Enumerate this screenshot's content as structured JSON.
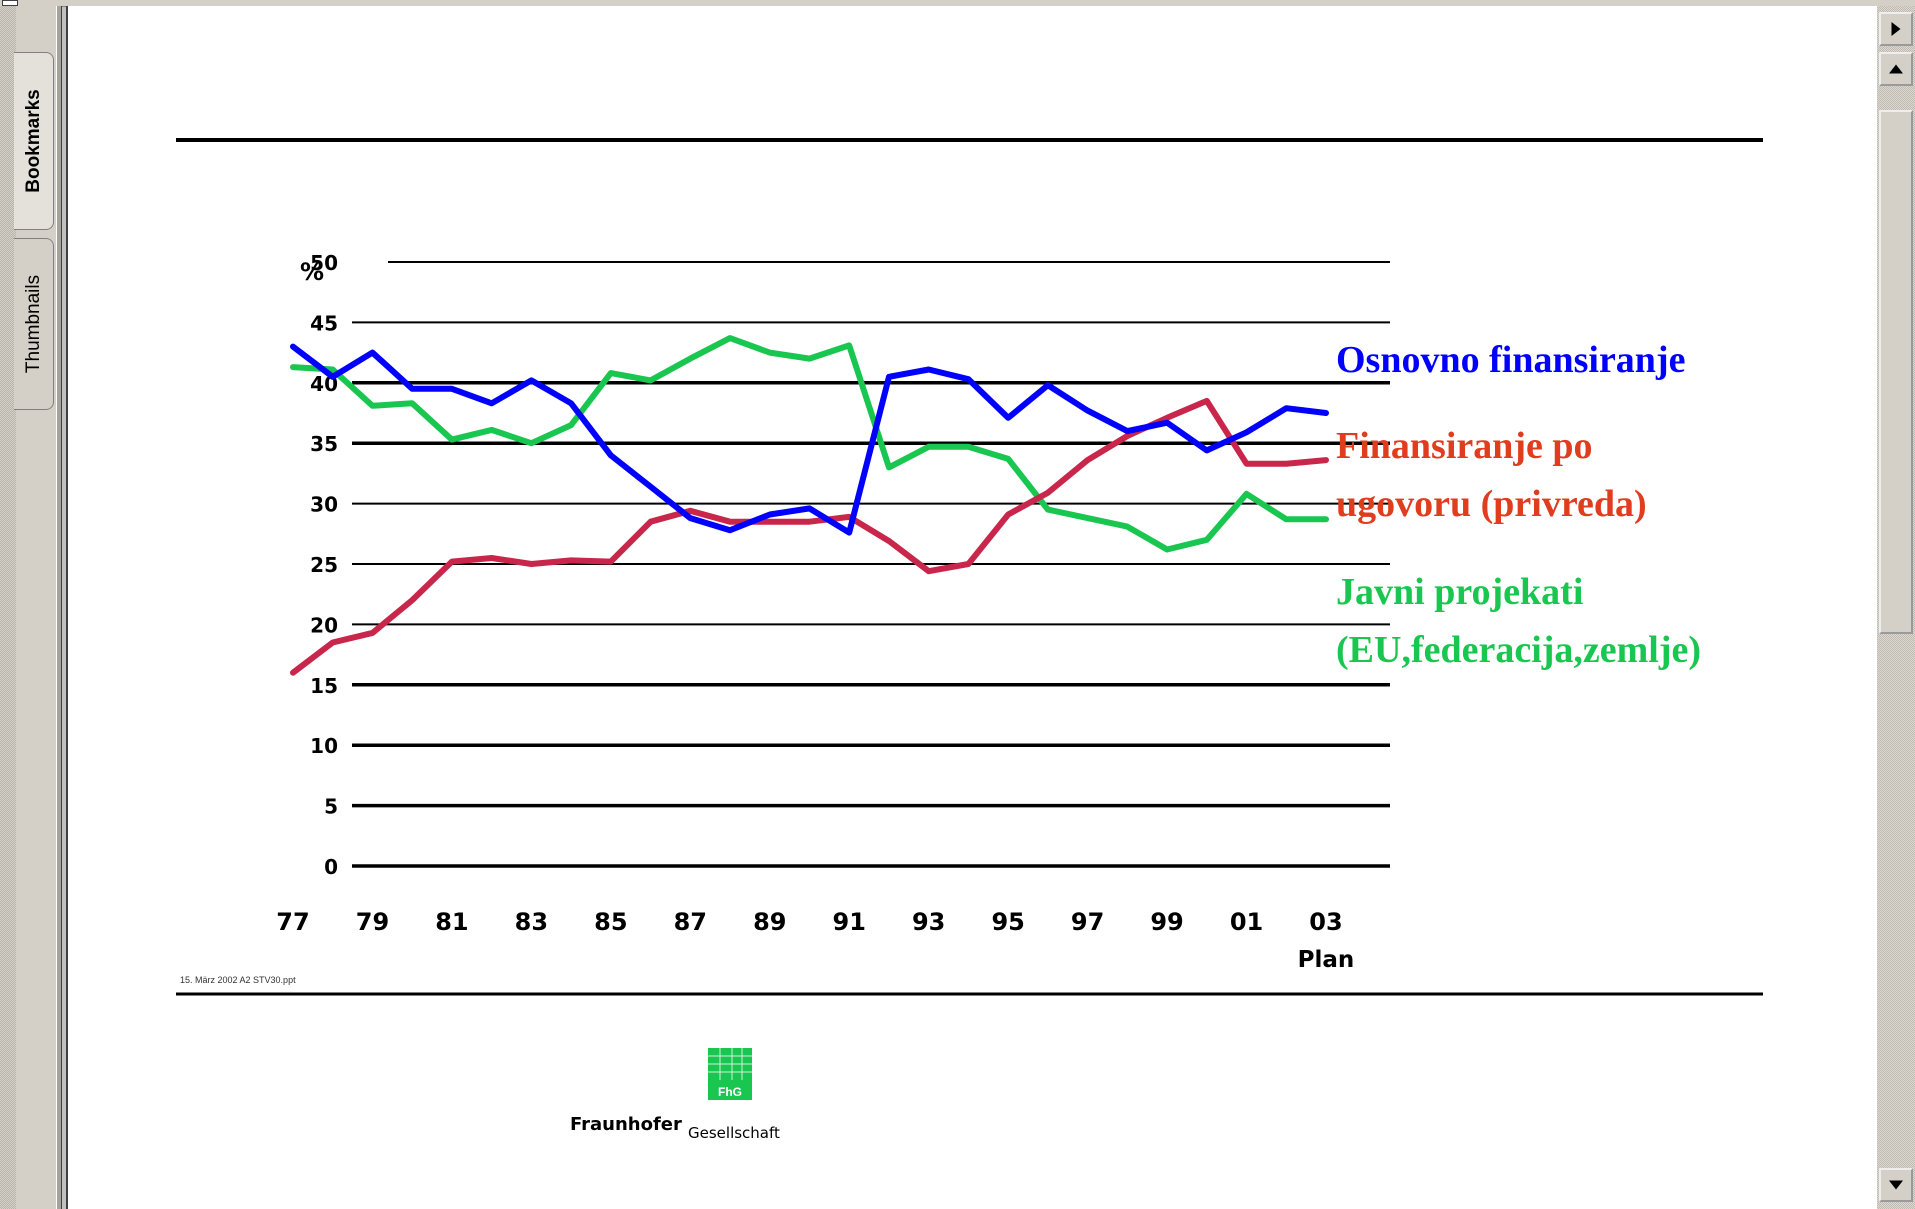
{
  "viewer": {
    "tabs": [
      {
        "label": "Bookmarks"
      },
      {
        "label": "Thumbnails"
      }
    ]
  },
  "slide": {
    "footnote": "15. März 2002 A2 STV30.ppt",
    "logo_badge": "FhG",
    "logo_name": "Fraunhofer",
    "logo_suffix": "Gesellschaft"
  },
  "chart_data": {
    "type": "line",
    "ylabel": "%",
    "ylim": [
      0,
      50
    ],
    "y_ticks": [
      0,
      5,
      10,
      15,
      20,
      25,
      30,
      35,
      40,
      45,
      50
    ],
    "x": [
      1977,
      1978,
      1979,
      1980,
      1981,
      1982,
      1983,
      1984,
      1985,
      1986,
      1987,
      1988,
      1989,
      1990,
      1991,
      1992,
      1993,
      1994,
      1995,
      1996,
      1997,
      1998,
      1999,
      2000,
      2001,
      2002,
      2003
    ],
    "x_tick_labels": [
      "77",
      "79",
      "81",
      "83",
      "85",
      "87",
      "89",
      "91",
      "93",
      "95",
      "97",
      "99",
      "01",
      "03"
    ],
    "x_tick_values": [
      1977,
      1979,
      1981,
      1983,
      1985,
      1987,
      1989,
      1991,
      1993,
      1995,
      1997,
      1999,
      2001,
      2003
    ],
    "x_sublabel": "Plan",
    "grid": true,
    "legend_position": "right",
    "series": [
      {
        "name": "Osnovno finansiranje",
        "color": "#0000ff",
        "label_color": "#0000ff",
        "values": [
          43,
          40.5,
          42.5,
          39.5,
          39.5,
          38.3,
          40.2,
          38.3,
          34,
          31.4,
          28.8,
          27.8,
          29.1,
          29.6,
          27.6,
          40.5,
          41.1,
          40.3,
          37.1,
          39.8,
          37.7,
          36,
          36.7,
          34.4,
          35.9,
          37.9,
          37.5
        ]
      },
      {
        "name": "Finansiranje po ugovoru (privreda)",
        "color": "#c8264b",
        "label_color": "#e03c1e",
        "values": [
          16,
          18.5,
          19.3,
          22,
          25.2,
          25.5,
          25,
          25.3,
          25.2,
          28.5,
          29.4,
          28.5,
          28.5,
          28.5,
          28.9,
          26.9,
          24.4,
          25,
          29.1,
          30.9,
          33.6,
          35.6,
          37.1,
          38.5,
          33.3,
          33.3,
          33.6
        ]
      },
      {
        "name": "Javni projekati (EU,federacija,zemlje)",
        "color": "#19c650",
        "label_color": "#19c650",
        "values": [
          41.3,
          41.1,
          38.1,
          38.3,
          35.3,
          36.1,
          35,
          36.5,
          40.8,
          40.2,
          42,
          43.7,
          42.5,
          42,
          43.1,
          33,
          34.7,
          34.7,
          33.7,
          29.5,
          28.8,
          28.1,
          26.2,
          27,
          30.8,
          28.7,
          28.7
        ]
      }
    ],
    "legend_lines": [
      [
        "Osnovno finansiranje"
      ],
      [
        "Finansiranje po",
        "ugovoru (privreda)"
      ],
      [
        "Javni projekati",
        "(EU,federacija,zemlje)"
      ]
    ]
  }
}
